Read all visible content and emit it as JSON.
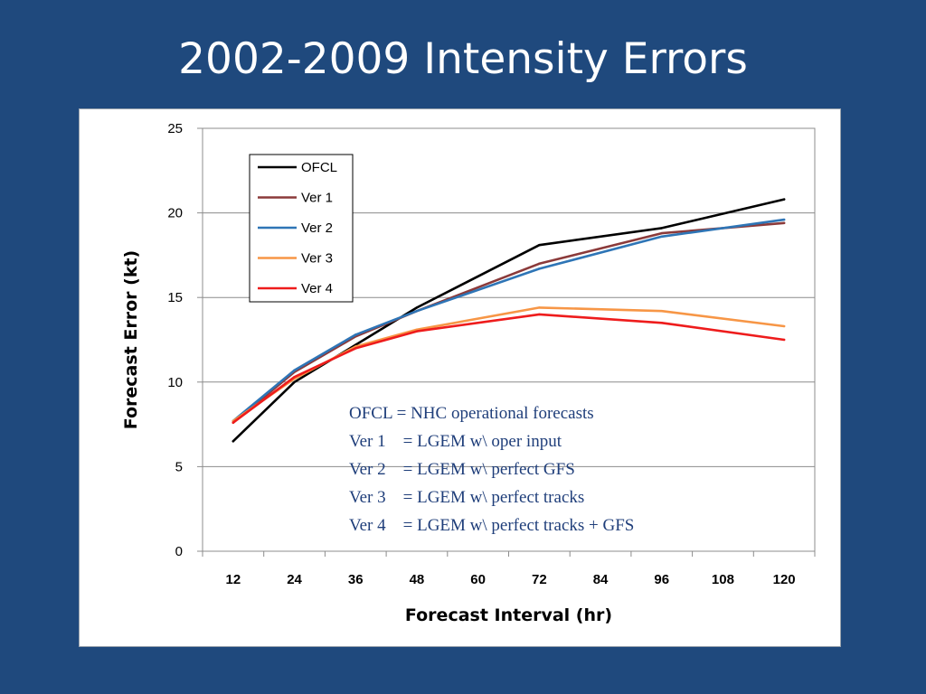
{
  "slide": {
    "title": "2002-2009 Intensity Errors",
    "background_color": "#1f497d"
  },
  "chart_data": {
    "type": "line",
    "xlabel": "Forecast Interval (hr)",
    "ylabel": "Forecast Error (kt)",
    "ylim": [
      0,
      25
    ],
    "yticks": [
      0,
      5,
      10,
      15,
      20,
      25
    ],
    "categories": [
      "12",
      "24",
      "36",
      "48",
      "60",
      "72",
      "84",
      "96",
      "108",
      "120"
    ],
    "grid": "horizontal",
    "legend_position": "top-left",
    "series": [
      {
        "name": "OFCL",
        "color": "#000000",
        "x": [
          12,
          24,
          36,
          48,
          72,
          96,
          120
        ],
        "values": [
          6.5,
          10.0,
          12.2,
          14.4,
          18.1,
          19.1,
          20.8
        ]
      },
      {
        "name": "Ver 1",
        "color": "#8b3a3a",
        "x": [
          12,
          24,
          36,
          48,
          72,
          96,
          120
        ],
        "values": [
          7.6,
          10.6,
          12.7,
          14.2,
          17.0,
          18.8,
          19.4
        ]
      },
      {
        "name": "Ver 2",
        "color": "#2e75b6",
        "x": [
          12,
          24,
          36,
          48,
          72,
          96,
          120
        ],
        "values": [
          7.7,
          10.7,
          12.8,
          14.2,
          16.7,
          18.6,
          19.6
        ]
      },
      {
        "name": "Ver 3",
        "color": "#f79646",
        "x": [
          12,
          24,
          36,
          48,
          72,
          96,
          120
        ],
        "values": [
          7.7,
          10.2,
          12.1,
          13.1,
          14.4,
          14.2,
          13.3
        ]
      },
      {
        "name": "Ver 4",
        "color": "#ee1c1c",
        "x": [
          12,
          24,
          36,
          48,
          72,
          96,
          120
        ],
        "values": [
          7.6,
          10.3,
          12.0,
          13.0,
          14.0,
          13.5,
          12.5
        ]
      }
    ],
    "annotations": [
      "OFCL = NHC operational forecasts",
      "Ver 1    = LGEM w\\ oper input",
      "Ver 2    = LGEM w\\ perfect GFS",
      "Ver 3    = LGEM w\\ perfect tracks",
      "Ver 4    = LGEM w\\ perfect tracks + GFS"
    ]
  }
}
